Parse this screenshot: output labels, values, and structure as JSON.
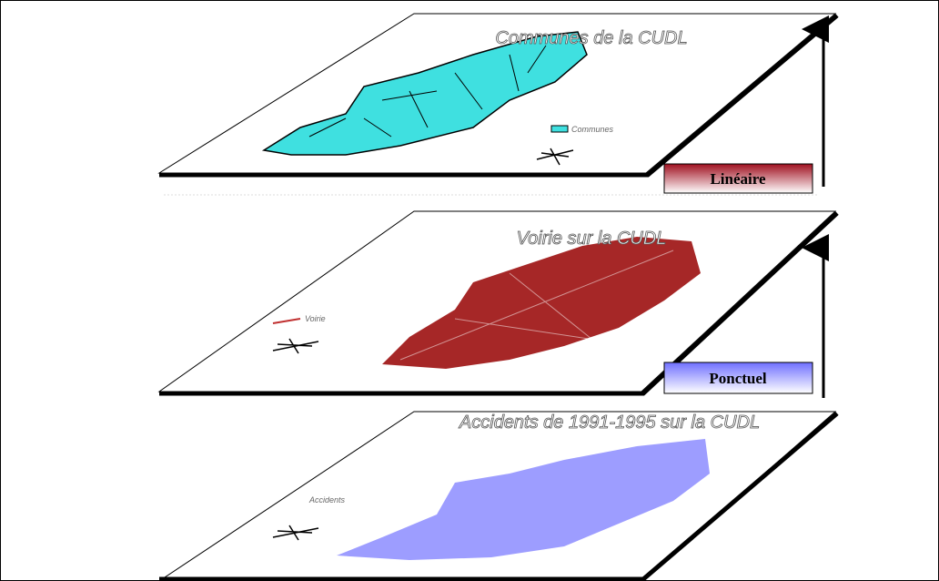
{
  "layers": [
    {
      "title": "Communes de la CUDL",
      "legend": "Communes"
    },
    {
      "title": "Voirie sur la CUDL",
      "legend": "Voirie"
    },
    {
      "title": "Accidents de 1991-1995 sur la CUDL",
      "legend": "Accidents"
    }
  ],
  "labels": {
    "linear": "Linéaire",
    "point": "Ponctuel"
  }
}
